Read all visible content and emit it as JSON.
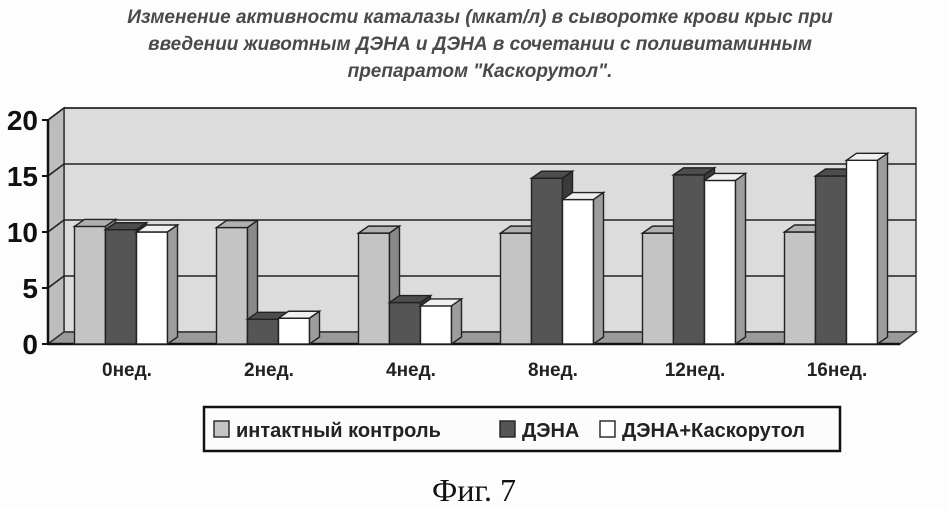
{
  "title_lines": [
    "Изменение активности каталазы (мкат/л) в сыворотке крови крыс при",
    "введении животным ДЭНА и ДЭНА в сочетании с поливитаминным",
    "препаратом \"Каскорутол\"."
  ],
  "caption": "Фиг. 7",
  "chart_data": {
    "type": "bar",
    "categories": [
      "0нед.",
      "2нед.",
      "4нед.",
      "8нед.",
      "12нед.",
      "16нед."
    ],
    "series": [
      {
        "name": "интактный контроль",
        "values": [
          10.5,
          10.4,
          9.9,
          9.9,
          9.9,
          10.0
        ],
        "color": "#c4c4c4"
      },
      {
        "name": "ДЭНА",
        "values": [
          10.2,
          2.2,
          3.7,
          14.8,
          15.1,
          15.0
        ],
        "color": "#555555"
      },
      {
        "name": "ДЭНА+Каскорутол",
        "values": [
          10.0,
          2.3,
          3.4,
          12.9,
          14.6,
          16.4
        ],
        "color": "#ffffff"
      }
    ],
    "y_ticks": [
      "0",
      "5",
      "10",
      "15",
      "20"
    ],
    "ylim": [
      0,
      20
    ],
    "grid": true,
    "legend_position": "bottom"
  }
}
